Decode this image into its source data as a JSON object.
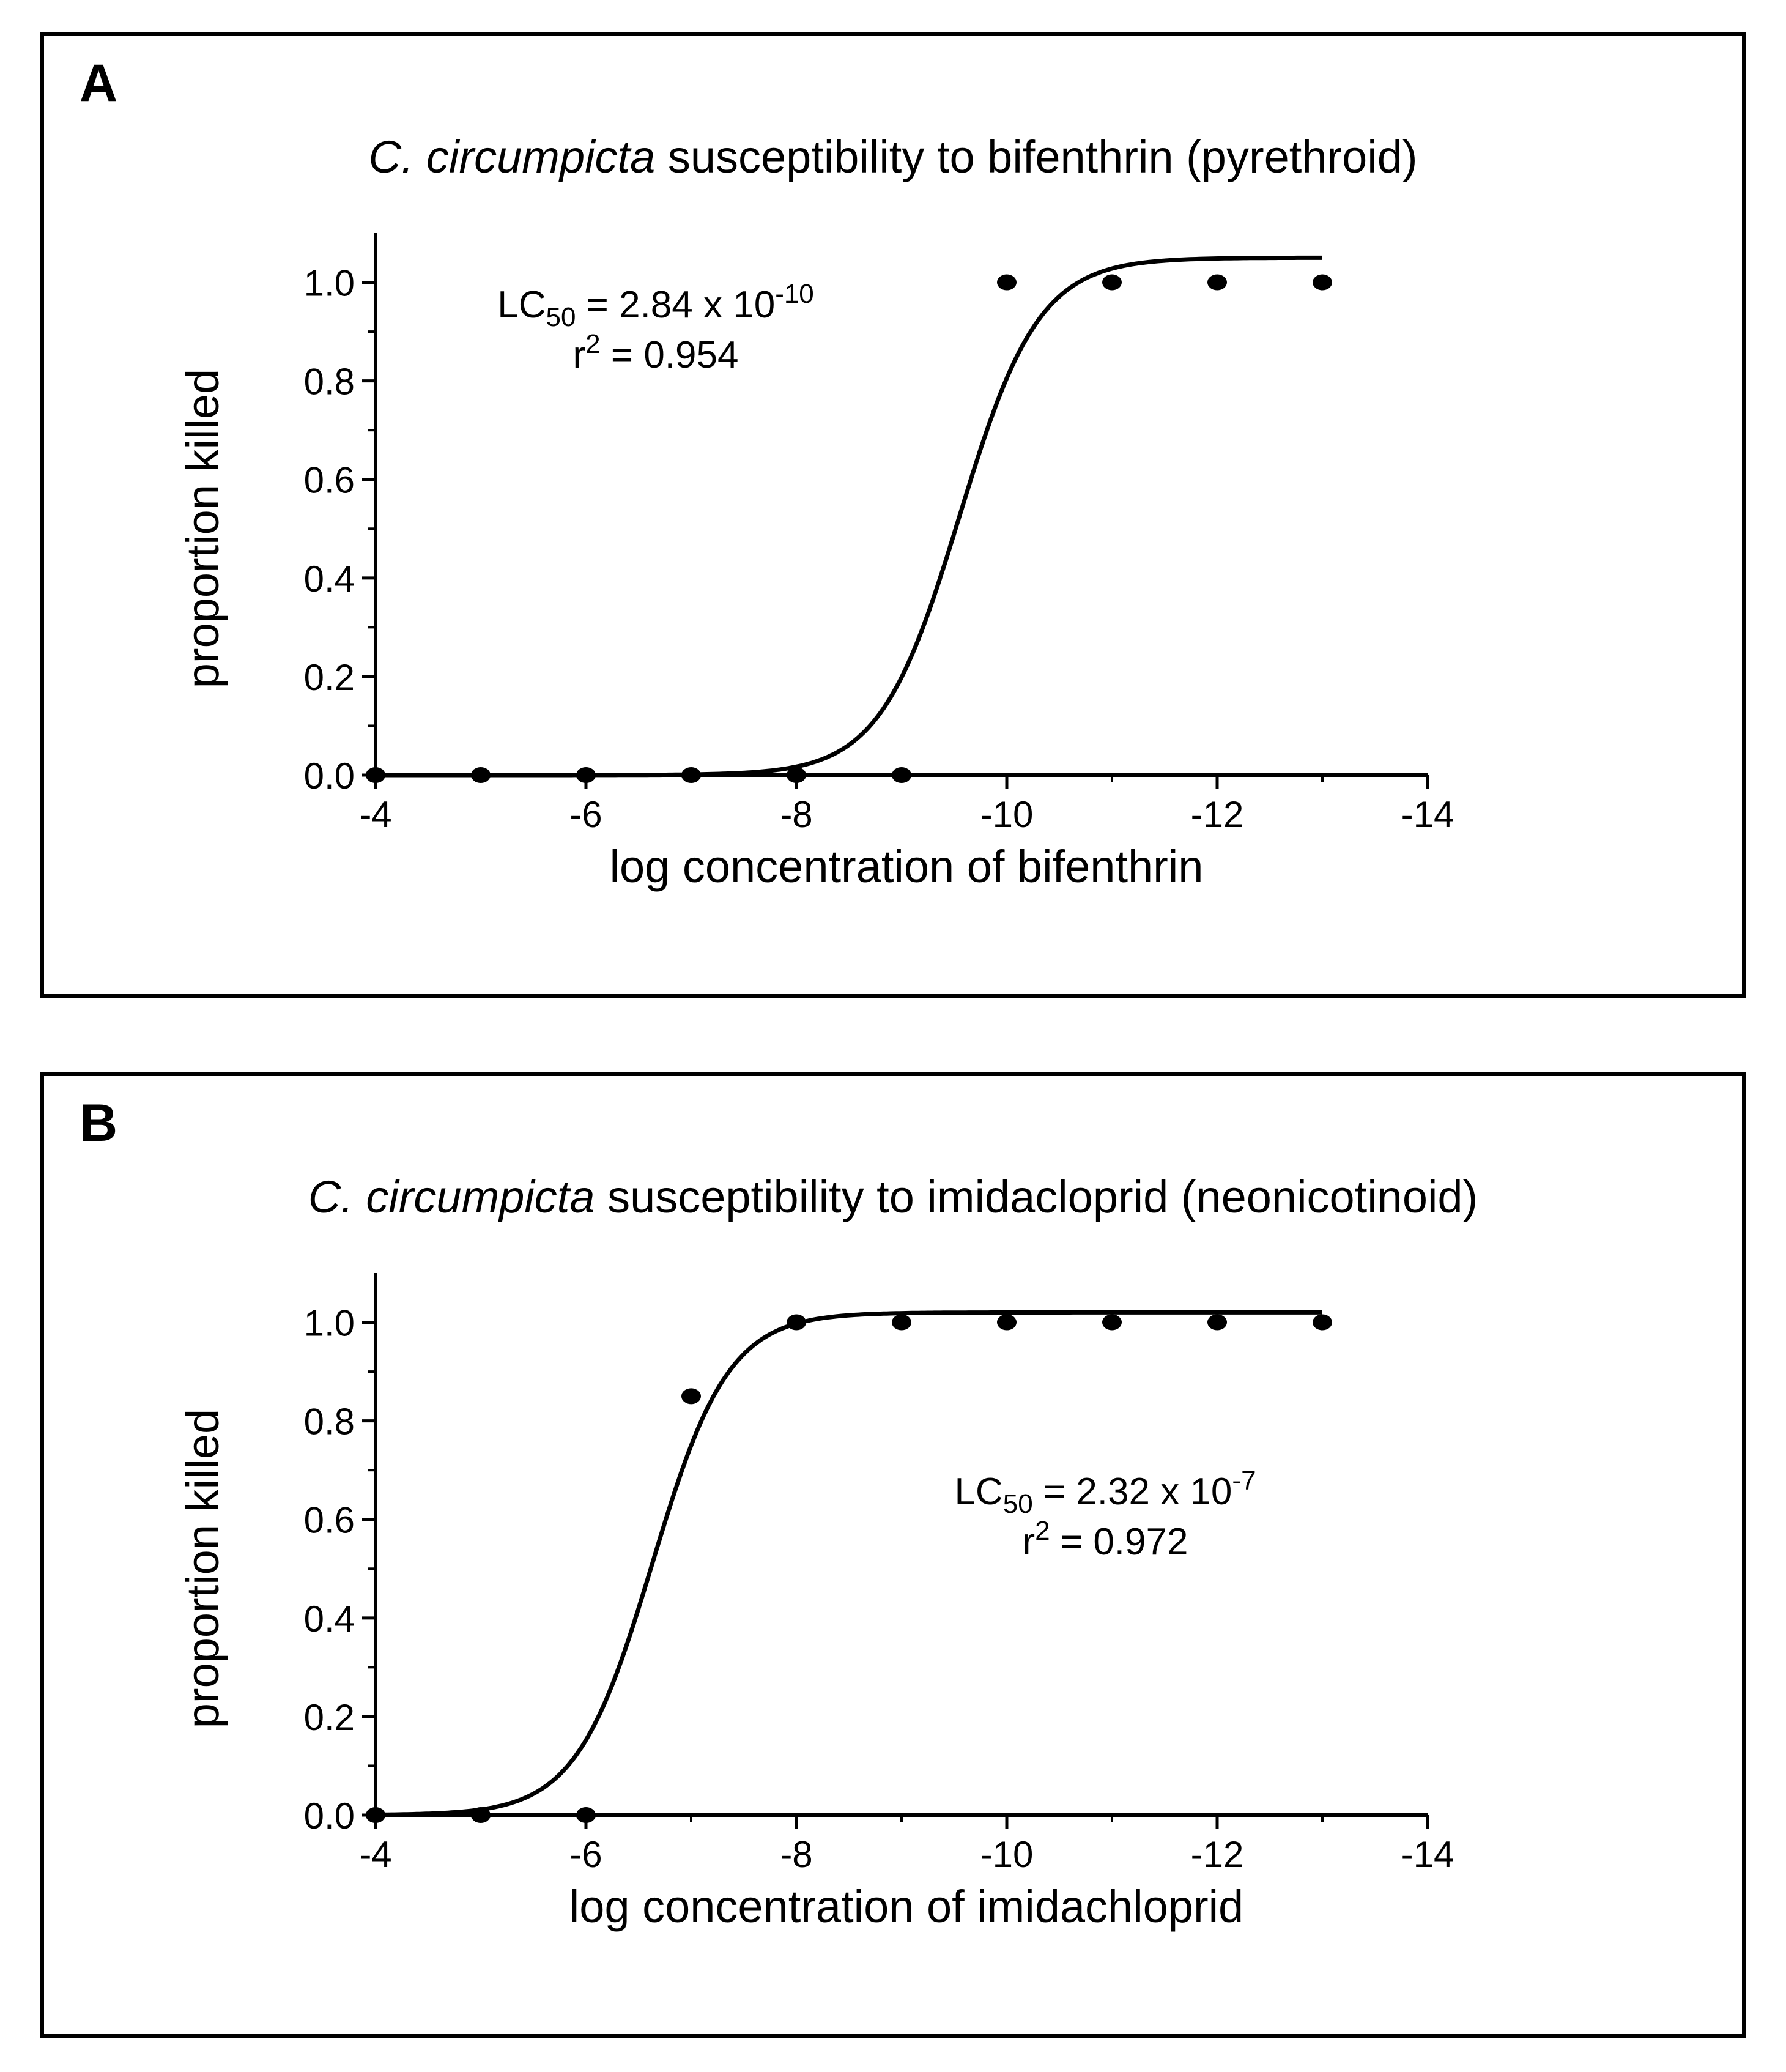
{
  "panels": [
    {
      "letter": "A",
      "title_species": "C. circumpicta",
      "title_rest": " susceptibility to bifenthrin (pyrethroid)"
    },
    {
      "letter": "B",
      "title_species": "C. circumpicta",
      "title_rest": " susceptibility to imidacloprid (neonicotinoid)"
    }
  ],
  "chart_data": [
    {
      "type": "scatter",
      "title": "C. circumpicta susceptibility to bifenthrin (pyrethroid)",
      "xlabel": "log concentration of bifenthrin",
      "ylabel": "proportion killed",
      "xlim": [
        -4,
        -14
      ],
      "ylim": [
        0,
        1.1
      ],
      "x_ticks": [
        -4,
        -6,
        -8,
        -10,
        -12,
        -14
      ],
      "x_tick_labels": [
        "-4",
        "-6",
        "-8",
        "-10",
        "-12",
        "-14"
      ],
      "y_ticks": [
        0,
        0.2,
        0.4,
        0.6,
        0.8,
        1.0
      ],
      "y_tick_labels": [
        "0.0",
        "0.2",
        "0.4",
        "0.6",
        "0.8",
        "1.0"
      ],
      "series": [
        {
          "name": "observed",
          "x": [
            -4,
            -5,
            -6,
            -7,
            -8,
            -9,
            -10,
            -11,
            -12,
            -13
          ],
          "y": [
            0,
            0,
            0,
            0,
            0,
            0,
            1.0,
            1.0,
            1.0,
            1.0
          ]
        }
      ],
      "fit": {
        "bottom": 0,
        "top": 1.05,
        "log_ec50": -9.55,
        "hill": 1.15,
        "x_range": [
          -4,
          -13
        ]
      },
      "annotation": {
        "lc_prefix": "LC",
        "lc_sub": "50",
        "lc_value": " = 2.84 x 10",
        "lc_exp": "-10",
        "r_prefix": "r",
        "r_exp": "2",
        "r_value": " = 0.954",
        "position": "upper-left"
      }
    },
    {
      "type": "scatter",
      "title": "C. circumpicta susceptibility to imidacloprid (neonicotinoid)",
      "xlabel": "log concentration of imidachloprid",
      "ylabel": "proportion killed",
      "xlim": [
        -4,
        -14
      ],
      "ylim": [
        0,
        1.1
      ],
      "x_ticks": [
        -4,
        -6,
        -8,
        -10,
        -12,
        -14
      ],
      "x_tick_labels": [
        "-4",
        "-6",
        "-8",
        "-10",
        "-12",
        "-14"
      ],
      "y_ticks": [
        0,
        0.2,
        0.4,
        0.6,
        0.8,
        1.0
      ],
      "y_tick_labels": [
        "0.0",
        "0.2",
        "0.4",
        "0.6",
        "0.8",
        "1.0"
      ],
      "series": [
        {
          "name": "observed",
          "x": [
            -4,
            -5,
            -6,
            -7,
            -8,
            -9,
            -10,
            -11,
            -12,
            -13
          ],
          "y": [
            0,
            0,
            0,
            0.85,
            1.0,
            1.0,
            1.0,
            1.0,
            1.0,
            1.0
          ]
        }
      ],
      "fit": {
        "bottom": 0,
        "top": 1.02,
        "log_ec50": -6.63,
        "hill": 1.2,
        "x_range": [
          -4,
          -13
        ]
      },
      "annotation": {
        "lc_prefix": "LC",
        "lc_sub": "50",
        "lc_value": " = 2.32 x 10",
        "lc_exp": "-7",
        "r_prefix": "r",
        "r_exp": "2",
        "r_value": " = 0.972",
        "position": "middle-right"
      }
    }
  ]
}
